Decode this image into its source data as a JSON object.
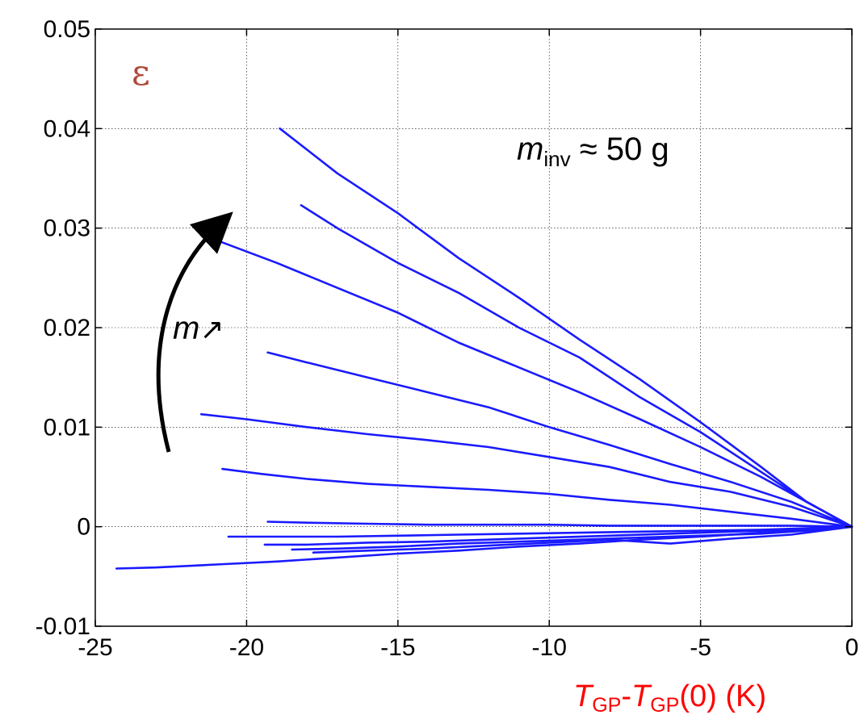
{
  "chart_data": {
    "type": "line",
    "xlabel": {
      "t1": "T",
      "s1": "GP",
      "dash": "-",
      "t2": "T",
      "s2": "GP",
      "rest": "(0)  (K)"
    },
    "ylabel": "ε",
    "xlim": [
      -25,
      0
    ],
    "ylim": [
      -0.01,
      0.05
    ],
    "xticks": [
      -25,
      -20,
      -15,
      -10,
      -5,
      0
    ],
    "yticks": [
      -0.01,
      0,
      0.01,
      0.02,
      0.03,
      0.04,
      0.05
    ],
    "xtick_labels": [
      "-25",
      "-20",
      "-15",
      "-10",
      "-5",
      "0"
    ],
    "ytick_labels": [
      "-0.01",
      "0",
      "0.01",
      "0.02",
      "0.03",
      "0.04",
      "0.05"
    ],
    "grid": true,
    "line_color": "#1a1aff",
    "annotations": {
      "mass": {
        "m": "m",
        "sub": "inv",
        "rest": " ≈ 50 g"
      },
      "arrow_label": {
        "m": "m",
        "arrow": "↗"
      }
    },
    "series": [
      {
        "x": [
          -18.9,
          -17,
          -15,
          -13,
          -11,
          -9,
          -7,
          -5,
          -3,
          -1.5,
          0
        ],
        "y": [
          0.04,
          0.0355,
          0.0315,
          0.027,
          0.023,
          0.0188,
          0.0148,
          0.0105,
          0.006,
          0.0025,
          0
        ]
      },
      {
        "x": [
          -18.2,
          -17,
          -15,
          -13,
          -11,
          -9,
          -7,
          -5,
          -3,
          -1.5,
          0
        ],
        "y": [
          0.0323,
          0.03,
          0.0265,
          0.0235,
          0.02,
          0.017,
          0.013,
          0.0095,
          0.0055,
          0.0025,
          0
        ]
      },
      {
        "x": [
          -21.1,
          -19,
          -17,
          -15,
          -13,
          -11,
          -9,
          -7,
          -5,
          -3,
          -1.5,
          0
        ],
        "y": [
          0.0289,
          0.0265,
          0.024,
          0.0215,
          0.0185,
          0.016,
          0.0135,
          0.0108,
          0.008,
          0.005,
          0.0025,
          0
        ]
      },
      {
        "x": [
          -19.3,
          -18,
          -16,
          -14,
          -12,
          -10,
          -8,
          -6,
          -4,
          -2,
          0
        ],
        "y": [
          0.0175,
          0.0165,
          0.015,
          0.0135,
          0.012,
          0.01,
          0.0082,
          0.0063,
          0.0045,
          0.0025,
          0
        ]
      },
      {
        "x": [
          -21.5,
          -20,
          -18,
          -16,
          -14,
          -12,
          -10,
          -8,
          -6,
          -4,
          -2,
          0
        ],
        "y": [
          0.0113,
          0.0108,
          0.01,
          0.0093,
          0.0087,
          0.008,
          0.007,
          0.006,
          0.0045,
          0.0035,
          0.002,
          0
        ]
      },
      {
        "x": [
          -20.8,
          -19.5,
          -18,
          -16,
          -14,
          -12,
          -10,
          -8,
          -6,
          -4,
          -2,
          0
        ],
        "y": [
          0.0058,
          0.0053,
          0.0048,
          0.0043,
          0.004,
          0.0037,
          0.0033,
          0.0027,
          0.0022,
          0.0015,
          0.0008,
          0
        ]
      },
      {
        "x": [
          -19.3,
          -18,
          -16,
          -14,
          -12,
          -10,
          -8,
          -6,
          -4,
          -2,
          0
        ],
        "y": [
          0.0005,
          0.0004,
          0.0003,
          0.0002,
          0.0002,
          0.0002,
          0.0001,
          0.0001,
          0.0001,
          0.0001,
          0
        ]
      },
      {
        "x": [
          -20.6,
          -19,
          -17,
          -15,
          -13,
          -11,
          -9,
          -7,
          -5,
          -3,
          -1,
          0
        ],
        "y": [
          -0.001,
          -0.001,
          -0.001,
          -0.0009,
          -0.0008,
          -0.0007,
          -0.0006,
          -0.0005,
          -0.0004,
          -0.0003,
          -0.0001,
          0
        ]
      },
      {
        "x": [
          -19.4,
          -18,
          -16,
          -14,
          -12,
          -10,
          -8,
          -6,
          -4,
          -2,
          0
        ],
        "y": [
          -0.0018,
          -0.0018,
          -0.0016,
          -0.0015,
          -0.0013,
          -0.0011,
          -0.0009,
          -0.0007,
          -0.0005,
          -0.0003,
          0
        ]
      },
      {
        "x": [
          -18.5,
          -17,
          -15,
          -13,
          -11,
          -9,
          -7,
          -5,
          -3,
          -1.5,
          0
        ],
        "y": [
          -0.0023,
          -0.0022,
          -0.002,
          -0.0017,
          -0.0015,
          -0.0013,
          -0.0011,
          -0.0009,
          -0.0007,
          -0.0004,
          0
        ]
      },
      {
        "x": [
          -17.8,
          -16,
          -14,
          -12,
          -10,
          -8,
          -6,
          -4,
          -2,
          0
        ],
        "y": [
          -0.0026,
          -0.0024,
          -0.0022,
          -0.0019,
          -0.0016,
          -0.0013,
          -0.0017,
          -0.0012,
          -0.0008,
          0
        ]
      },
      {
        "x": [
          -24.3,
          -23,
          -21,
          -19,
          -17,
          -15,
          -13,
          -11,
          -9,
          -7,
          -5,
          -3,
          -1,
          0
        ],
        "y": [
          -0.0042,
          -0.0041,
          -0.0038,
          -0.0035,
          -0.0031,
          -0.0027,
          -0.0024,
          -0.002,
          -0.0017,
          -0.0013,
          -0.001,
          -0.0006,
          -0.0002,
          0
        ]
      }
    ]
  }
}
